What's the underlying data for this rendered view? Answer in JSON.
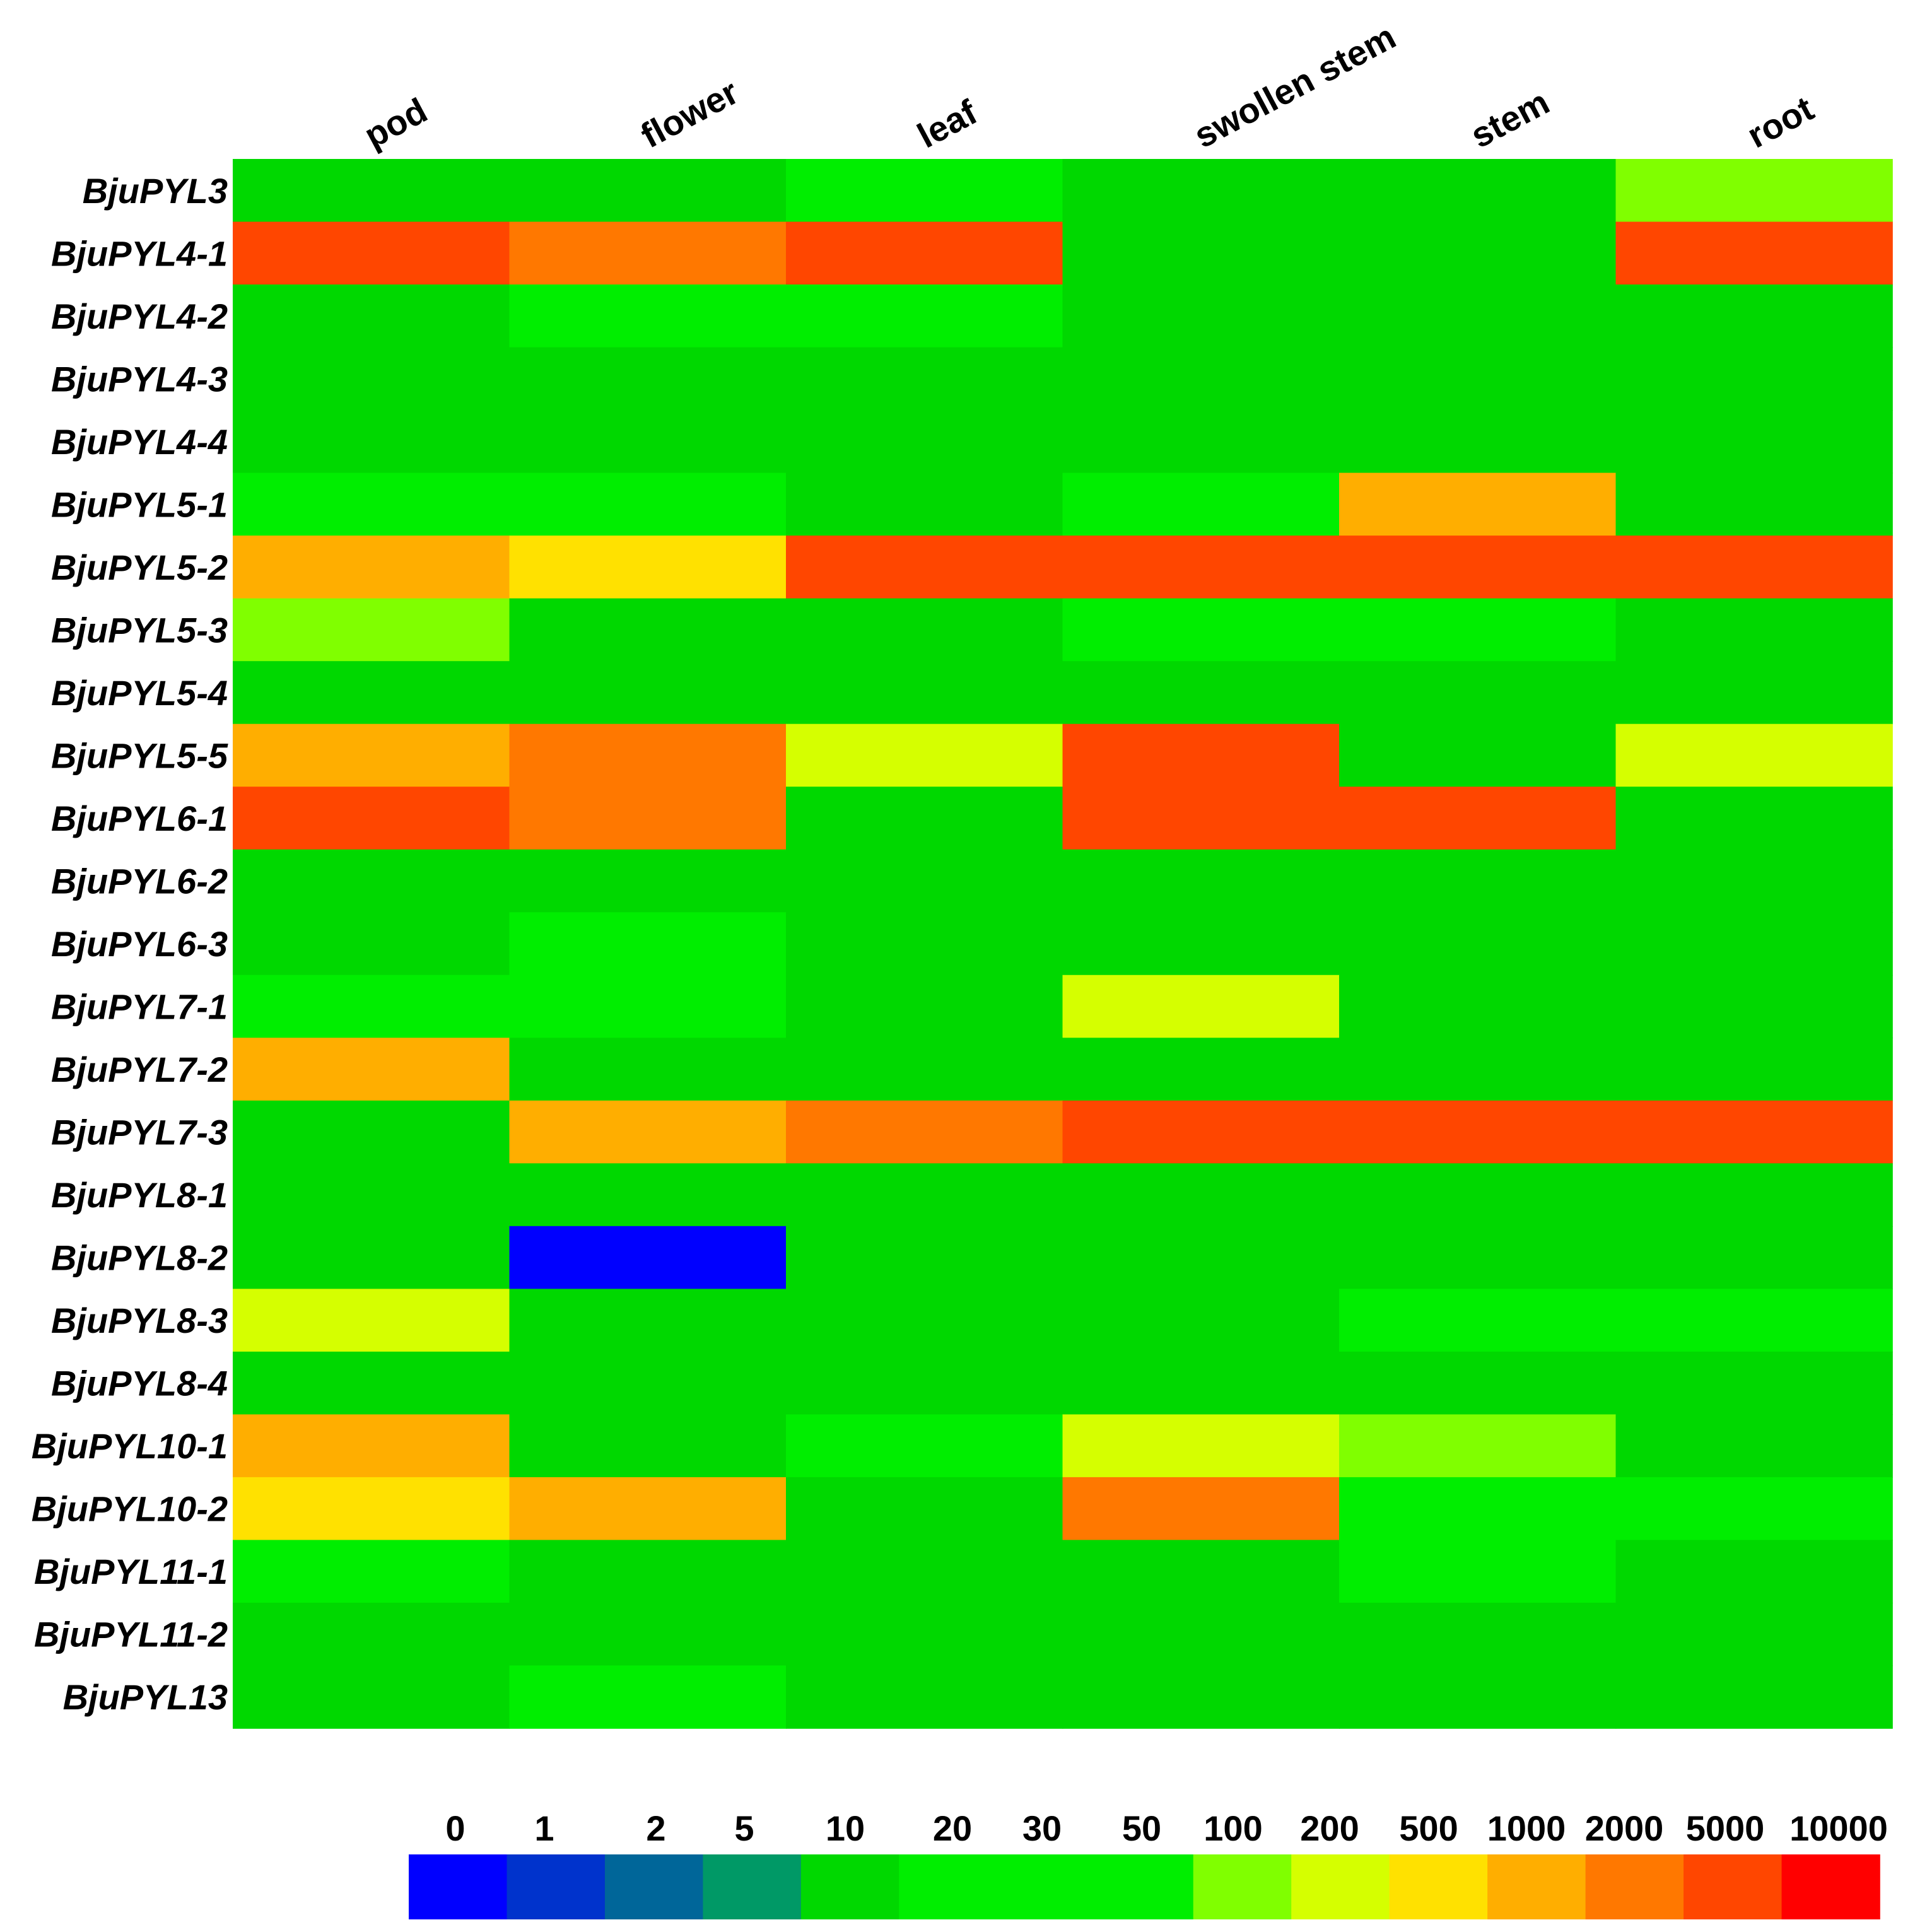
{
  "chart_data": {
    "type": "heatmap",
    "title": "",
    "columns": [
      "pod",
      "flower",
      "leaf",
      "swollen stem",
      "stem",
      "root"
    ],
    "rows": [
      "BjuPYL3",
      "BjuPYL4-1",
      "BjuPYL4-2",
      "BjuPYL4-3",
      "BjuPYL4-4",
      "BjuPYL5-1",
      "BjuPYL5-2",
      "BjuPYL5-3",
      "BjuPYL5-4",
      "BjuPYL5-5",
      "BjuPYL6-1",
      "BjuPYL6-2",
      "BjuPYL6-3",
      "BjuPYL7-1",
      "BjuPYL7-2",
      "BjuPYL7-3",
      "BjuPYL8-1",
      "BjuPYL8-2",
      "BjuPYL8-3",
      "BjuPYL8-4",
      "BjuPYL10-1",
      "BjuPYL10-2",
      "BjuPYL11-1",
      "BjuPYL11-2",
      "BjuPYL13"
    ],
    "values": [
      [
        10,
        10,
        20,
        10,
        10,
        100
      ],
      [
        5000,
        2000,
        5000,
        10,
        10,
        5000
      ],
      [
        10,
        20,
        20,
        10,
        10,
        10
      ],
      [
        10,
        10,
        10,
        10,
        10,
        10
      ],
      [
        10,
        10,
        10,
        10,
        10,
        10
      ],
      [
        20,
        20,
        10,
        20,
        1000,
        10
      ],
      [
        1000,
        500,
        5000,
        5000,
        5000,
        5000
      ],
      [
        100,
        10,
        10,
        20,
        20,
        10
      ],
      [
        10,
        10,
        10,
        10,
        10,
        10
      ],
      [
        1000,
        2000,
        200,
        5000,
        10,
        200
      ],
      [
        5000,
        2000,
        10,
        5000,
        5000,
        10
      ],
      [
        10,
        10,
        10,
        10,
        10,
        10
      ],
      [
        10,
        20,
        10,
        10,
        10,
        10
      ],
      [
        20,
        20,
        10,
        200,
        10,
        10
      ],
      [
        1000,
        10,
        10,
        10,
        10,
        10
      ],
      [
        10,
        1000,
        2000,
        5000,
        5000,
        5000
      ],
      [
        10,
        10,
        10,
        10,
        10,
        10
      ],
      [
        10,
        0,
        10,
        10,
        10,
        10
      ],
      [
        200,
        10,
        10,
        10,
        20,
        20
      ],
      [
        10,
        10,
        10,
        10,
        10,
        10
      ],
      [
        1000,
        10,
        20,
        200,
        100,
        10
      ],
      [
        500,
        1000,
        10,
        2000,
        20,
        20
      ],
      [
        20,
        10,
        10,
        10,
        20,
        10
      ],
      [
        10,
        10,
        10,
        10,
        10,
        10
      ],
      [
        10,
        20,
        10,
        10,
        10,
        10
      ]
    ],
    "colorscale": {
      "ticks": [
        "0",
        "1",
        "2",
        "5",
        "10",
        "20",
        "30",
        "50",
        "100",
        "200",
        "500",
        "1000",
        "2000",
        "5000",
        "10000"
      ],
      "stops": [
        {
          "value": 0,
          "color": "#0000ff"
        },
        {
          "value": 1,
          "color": "#0033cc"
        },
        {
          "value": 2,
          "color": "#006699"
        },
        {
          "value": 5,
          "color": "#009966"
        },
        {
          "value": 10,
          "color": "#00d800"
        },
        {
          "value": 20,
          "color": "#00ee00"
        },
        {
          "value": 30,
          "color": "#00ee00"
        },
        {
          "value": 50,
          "color": "#00ee00"
        },
        {
          "value": 100,
          "color": "#80ff00"
        },
        {
          "value": 200,
          "color": "#d5ff00"
        },
        {
          "value": 500,
          "color": "#ffe100"
        },
        {
          "value": 1000,
          "color": "#ffae00"
        },
        {
          "value": 2000,
          "color": "#ff7800"
        },
        {
          "value": 5000,
          "color": "#ff4600"
        },
        {
          "value": 10000,
          "color": "#ff0000"
        }
      ]
    }
  }
}
